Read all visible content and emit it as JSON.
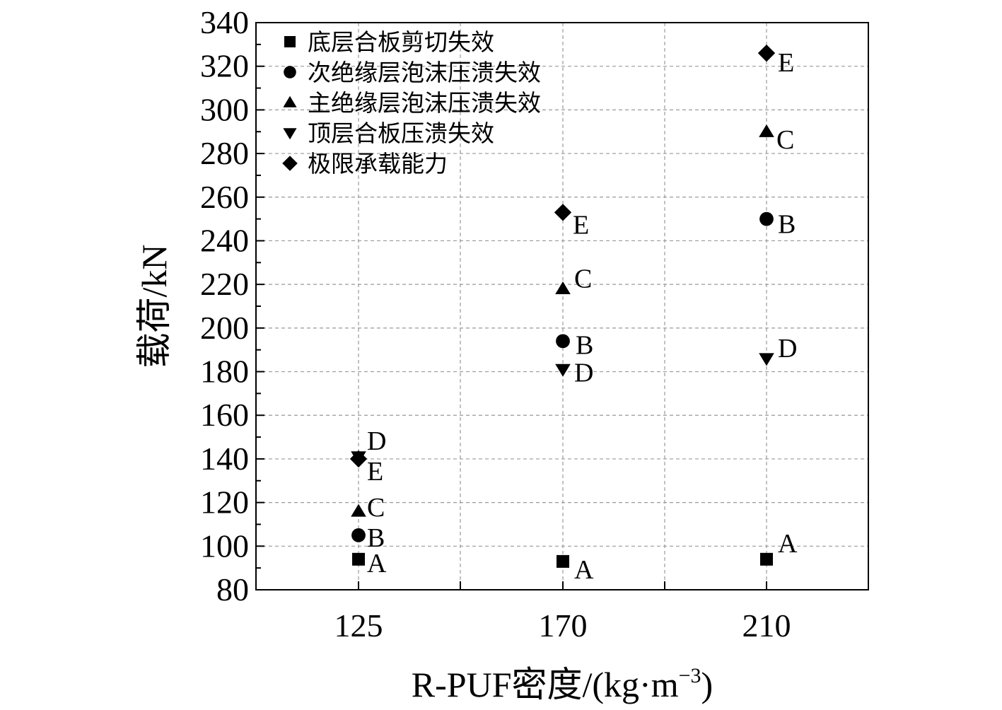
{
  "chart_data": {
    "type": "scatter",
    "xlabel_prefix": "R-PUF密度/(kg·m",
    "xlabel_sup": "−3",
    "xlabel_suffix": ")",
    "ylabel": "载荷/kN",
    "categories": [
      "125",
      "170",
      "210"
    ],
    "ylim": [
      80,
      340
    ],
    "yticks": [
      80,
      100,
      120,
      140,
      160,
      180,
      200,
      220,
      240,
      260,
      280,
      300,
      320,
      340
    ],
    "grid": true,
    "legend_position": "top-left",
    "series": [
      {
        "name": "底层合板剪切失效",
        "marker": "square",
        "tag": "A",
        "values": [
          94,
          93,
          94
        ]
      },
      {
        "name": "次绝缘层泡沫压溃失效",
        "marker": "circle",
        "tag": "B",
        "values": [
          105,
          194,
          250
        ]
      },
      {
        "name": "主绝缘层泡沫压溃失效",
        "marker": "triangle-up",
        "tag": "C",
        "values": [
          116,
          218,
          290
        ]
      },
      {
        "name": "顶层合板压溃失效",
        "marker": "triangle-down",
        "tag": "D",
        "values": [
          141,
          181,
          186
        ]
      },
      {
        "name": "极限承载能力",
        "marker": "diamond",
        "tag": "E",
        "values": [
          140,
          253,
          326
        ]
      }
    ]
  }
}
